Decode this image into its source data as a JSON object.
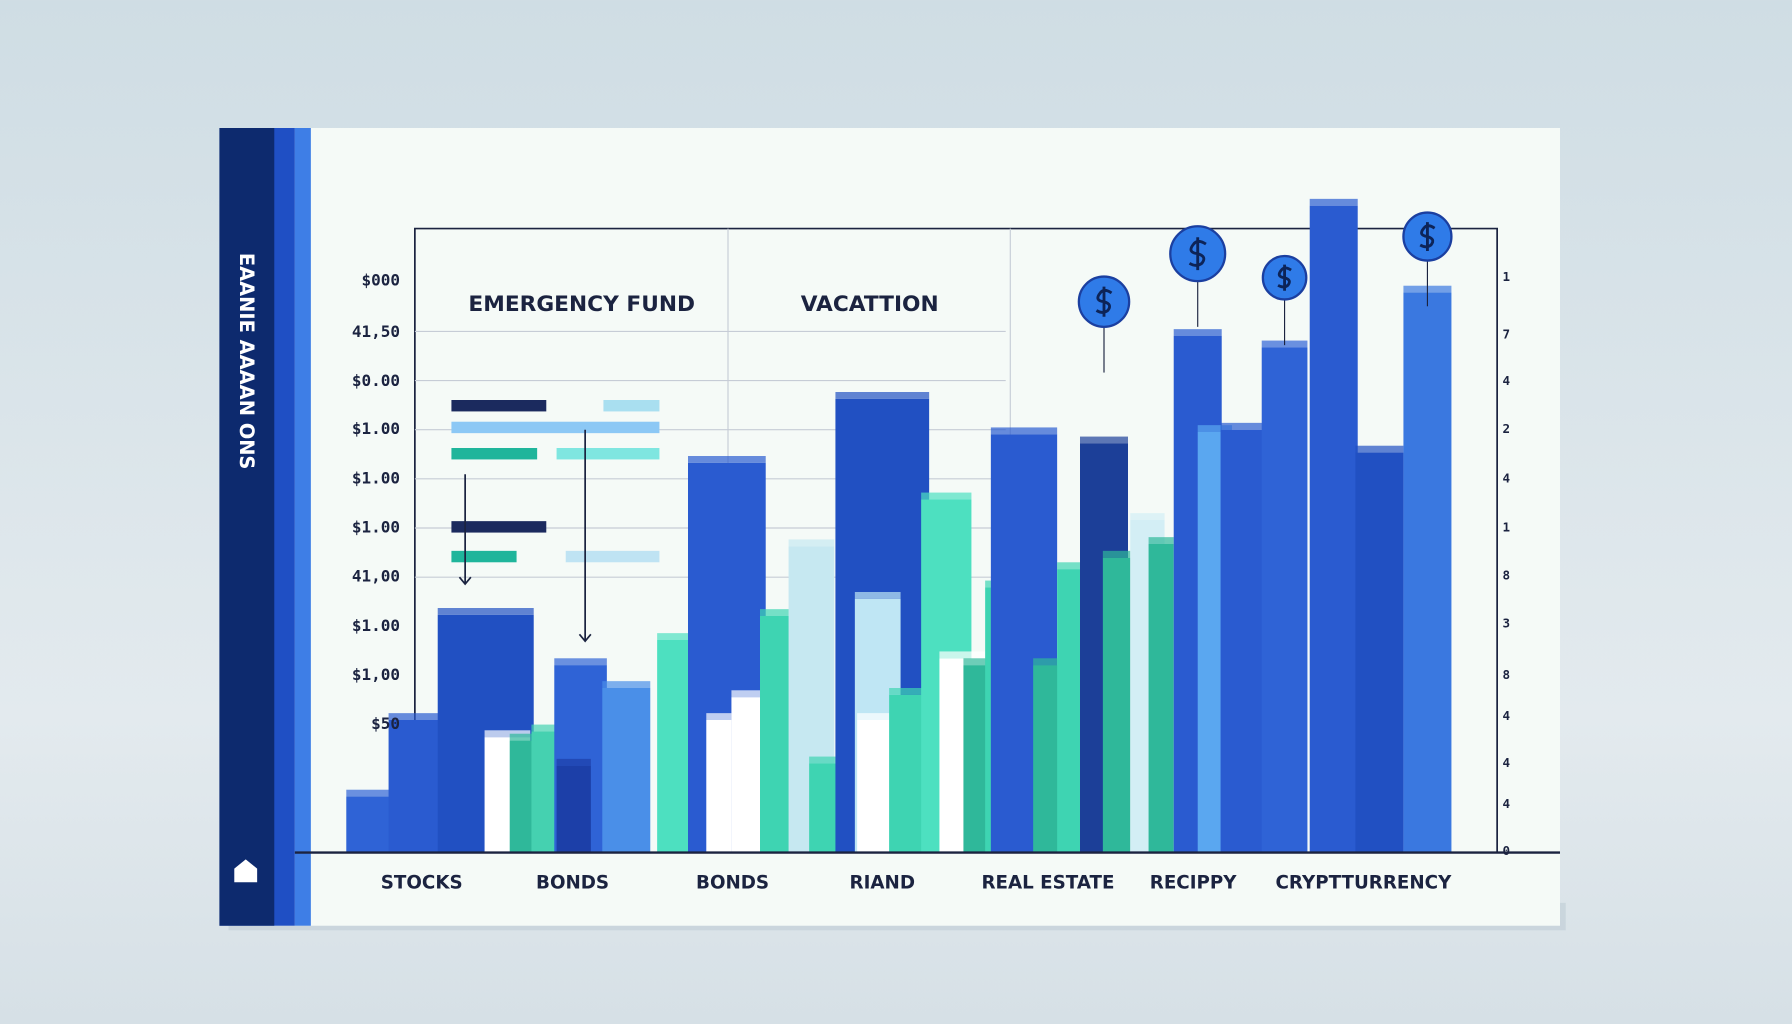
{
  "sidebar": {
    "title": "EAANIE AAAAN ONS"
  },
  "chart": {
    "headers": [
      "EMERGENCY FUND",
      "VACATTION"
    ],
    "left_labels": [
      "$000",
      "41,50",
      "$0.00",
      "$1.00",
      "$1.00",
      "$1.00",
      "41,00",
      "$1.00",
      "$1,00",
      "$50"
    ],
    "right_labels": [
      "1",
      "7",
      "4",
      "2",
      "4",
      "1",
      "8",
      "3",
      "8",
      "4",
      "4",
      "4",
      "0"
    ],
    "categories": [
      "STOCKS",
      "BONDS",
      "BONDS",
      "RIAND",
      "REAL ESTATE",
      "RECIPPY",
      "CRYPTTURRENCY"
    ]
  }
}
